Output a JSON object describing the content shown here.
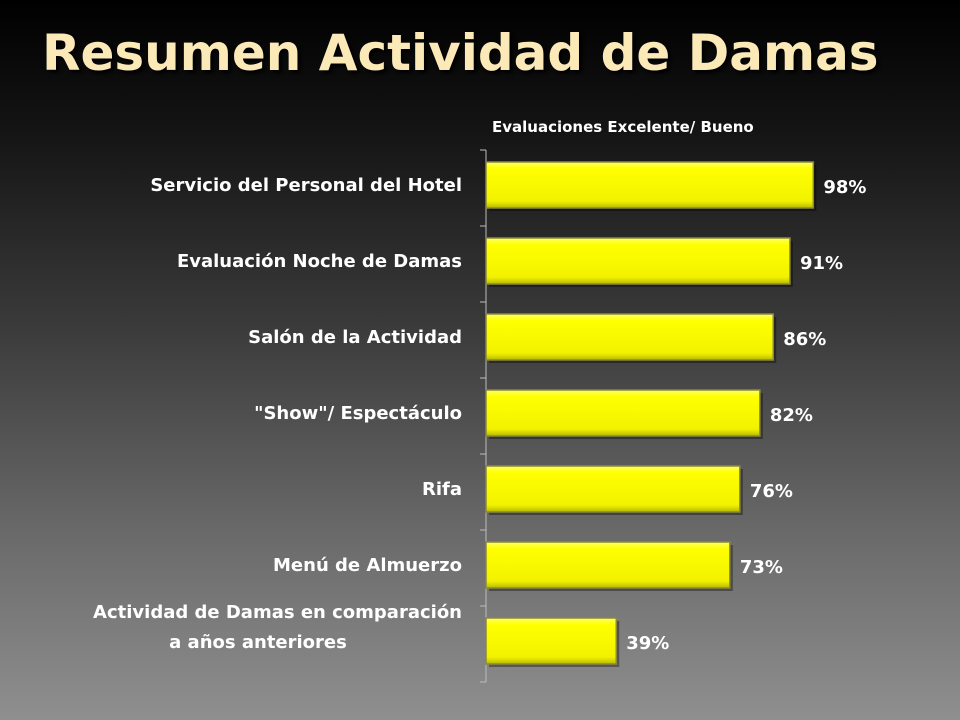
{
  "slide": {
    "title": "Resumen Actividad de Damas"
  },
  "chart_data": {
    "type": "bar",
    "orientation": "horizontal",
    "subtitle": "Evaluaciones Excelente/ Bueno",
    "categories": [
      "Servicio del Personal del Hotel",
      "Evaluación Noche de Damas",
      "Salón de la Actividad",
      "\"Show\"/ Espectáculo",
      "Rifa",
      "Menú de Almuerzo",
      "Actividad de Damas en comparación\na años anteriores"
    ],
    "values": [
      98,
      91,
      86,
      82,
      76,
      73,
      39
    ],
    "value_labels": [
      "98%",
      "91%",
      "86%",
      "82%",
      "76%",
      "73%",
      "39%"
    ],
    "unit": "%",
    "xlim": [
      0,
      100
    ],
    "grid": false,
    "legend": "none",
    "colors": {
      "bar": "#ffff00",
      "bar_edge": "#8a8a3a",
      "axis": "#bdbdbd",
      "labels": "#ffffff",
      "title": "#fbe9b8"
    }
  }
}
